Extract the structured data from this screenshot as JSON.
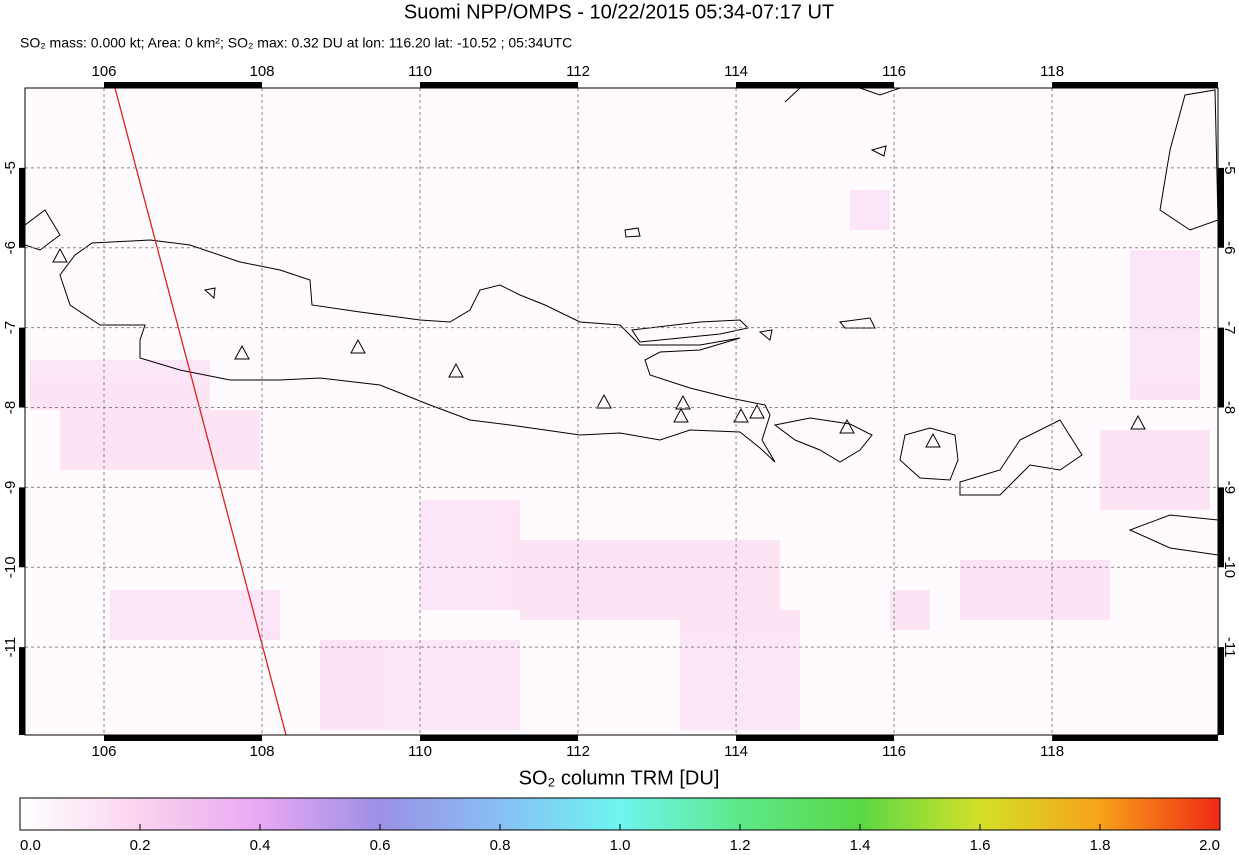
{
  "title": "Suomi NPP/OMPS - 10/22/2015 05:34-07:17 UT",
  "subtitle": "SO₂ mass: 0.000 kt; Area: 0 km²; SO₂ max: 0.32 DU at lon: 116.20 lat: -10.52 ; 05:34UTC",
  "map": {
    "xlim": [
      105,
      120.1
    ],
    "ylim": [
      -12.1,
      -4
    ],
    "xticks": [
      106,
      108,
      110,
      112,
      114,
      116,
      118
    ],
    "yticks": [
      -5,
      -6,
      -7,
      -8,
      -9,
      -10,
      -11
    ],
    "grid": true
  },
  "colorbar": {
    "label": "SO₂ column TRM [DU]",
    "range": [
      0,
      2
    ],
    "ticks": [
      {
        "value": 0,
        "label": "0.0"
      },
      {
        "value": 0.2,
        "label": "0.2"
      },
      {
        "value": 0.4,
        "label": "0.4"
      },
      {
        "value": 0.6,
        "label": "0.6"
      },
      {
        "value": 0.8,
        "label": "0.8"
      },
      {
        "value": 1,
        "label": "1.0"
      },
      {
        "value": 1.2,
        "label": "1.2"
      },
      {
        "value": 1.4,
        "label": "1.4"
      },
      {
        "value": 1.6,
        "label": "1.6"
      },
      {
        "value": 1.8,
        "label": "1.8"
      },
      {
        "value": 2,
        "label": "2.0"
      }
    ]
  }
}
